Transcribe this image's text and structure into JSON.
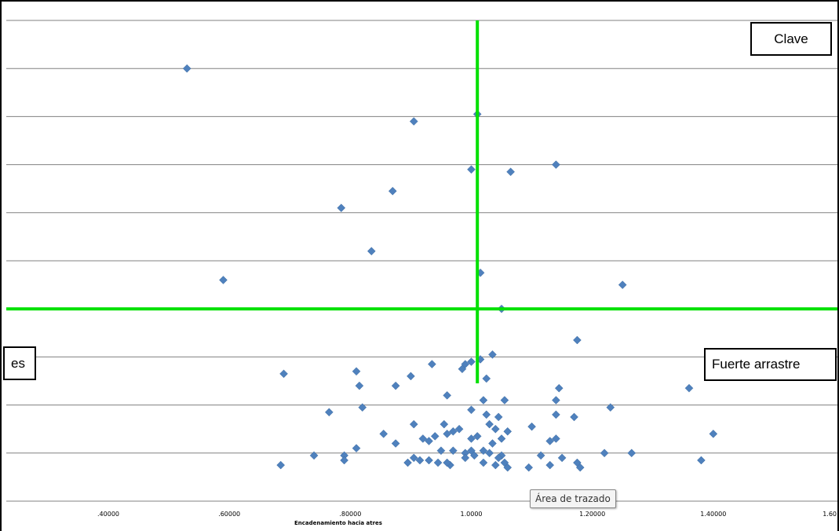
{
  "chart_data": {
    "type": "scatter",
    "title": "",
    "xlabel": "Encadenamiento hacia atres",
    "ylabel": "",
    "xlim": [
      0.255,
      1.6
    ],
    "ylim": [
      0,
      10
    ],
    "x_tick_labels": [
      ".40000",
      ".60000",
      ".80000",
      "1.0000",
      "1.20000",
      "1.40000",
      "1.60"
    ],
    "x_tick_values": [
      0.4,
      0.6,
      0.8,
      1.0,
      1.2,
      1.4,
      1.6
    ],
    "y_gridlines": [
      1,
      2,
      3,
      4,
      5,
      6,
      7,
      8,
      9,
      10
    ],
    "grid": true,
    "legend": "none",
    "reference_lines": {
      "vertical_x": 1.01,
      "horizontal_y": 4.0,
      "color": "#00e000"
    },
    "marker_color": "#4f81bd",
    "series": [
      {
        "points": [
          [
            0.53,
            9.0
          ],
          [
            0.59,
            4.6
          ],
          [
            0.905,
            7.9
          ],
          [
            1.01,
            8.05
          ],
          [
            1.0,
            6.9
          ],
          [
            1.065,
            6.85
          ],
          [
            1.14,
            7.0
          ],
          [
            0.87,
            6.45
          ],
          [
            0.785,
            6.1
          ],
          [
            0.835,
            5.2
          ],
          [
            1.015,
            4.75
          ],
          [
            1.25,
            4.5
          ],
          [
            1.05,
            4.0
          ],
          [
            1.175,
            3.35
          ],
          [
            0.69,
            2.65
          ],
          [
            0.81,
            2.7
          ],
          [
            0.815,
            2.4
          ],
          [
            0.875,
            2.4
          ],
          [
            0.9,
            2.6
          ],
          [
            0.935,
            2.85
          ],
          [
            0.985,
            2.75
          ],
          [
            0.99,
            2.85
          ],
          [
            1.0,
            2.9
          ],
          [
            1.015,
            2.95
          ],
          [
            1.035,
            3.05
          ],
          [
            1.025,
            2.55
          ],
          [
            1.145,
            2.35
          ],
          [
            1.36,
            2.35
          ],
          [
            0.765,
            1.85
          ],
          [
            0.82,
            1.95
          ],
          [
            0.96,
            2.2
          ],
          [
            1.02,
            2.1
          ],
          [
            1.055,
            2.1
          ],
          [
            1.14,
            2.1
          ],
          [
            1.23,
            1.95
          ],
          [
            1.0,
            1.9
          ],
          [
            1.025,
            1.8
          ],
          [
            1.045,
            1.75
          ],
          [
            1.14,
            1.8
          ],
          [
            1.17,
            1.75
          ],
          [
            0.905,
            1.6
          ],
          [
            0.955,
            1.6
          ],
          [
            1.03,
            1.6
          ],
          [
            1.04,
            1.5
          ],
          [
            1.06,
            1.45
          ],
          [
            1.1,
            1.55
          ],
          [
            0.855,
            1.4
          ],
          [
            0.875,
            1.2
          ],
          [
            0.92,
            1.3
          ],
          [
            0.93,
            1.25
          ],
          [
            0.94,
            1.35
          ],
          [
            0.96,
            1.4
          ],
          [
            0.97,
            1.45
          ],
          [
            0.98,
            1.5
          ],
          [
            1.0,
            1.3
          ],
          [
            1.01,
            1.35
          ],
          [
            1.035,
            1.2
          ],
          [
            1.05,
            1.3
          ],
          [
            1.13,
            1.25
          ],
          [
            1.14,
            1.3
          ],
          [
            1.4,
            1.4
          ],
          [
            0.74,
            0.95
          ],
          [
            0.79,
            0.95
          ],
          [
            0.81,
            1.1
          ],
          [
            0.95,
            1.05
          ],
          [
            0.97,
            1.05
          ],
          [
            0.99,
            1.0
          ],
          [
            1.0,
            1.05
          ],
          [
            1.02,
            1.05
          ],
          [
            1.03,
            1.0
          ],
          [
            1.05,
            0.95
          ],
          [
            1.115,
            0.95
          ],
          [
            1.15,
            0.9
          ],
          [
            1.22,
            1.0
          ],
          [
            1.265,
            1.0
          ],
          [
            0.685,
            0.75
          ],
          [
            0.79,
            0.85
          ],
          [
            0.895,
            0.8
          ],
          [
            0.915,
            0.85
          ],
          [
            0.93,
            0.85
          ],
          [
            0.945,
            0.8
          ],
          [
            0.965,
            0.75
          ],
          [
            0.99,
            0.9
          ],
          [
            1.005,
            0.95
          ],
          [
            1.02,
            0.8
          ],
          [
            1.04,
            0.75
          ],
          [
            1.055,
            0.8
          ],
          [
            1.06,
            0.7
          ],
          [
            1.095,
            0.7
          ],
          [
            1.13,
            0.75
          ],
          [
            1.18,
            0.7
          ],
          [
            1.175,
            0.8
          ],
          [
            1.38,
            0.85
          ],
          [
            0.905,
            0.9
          ],
          [
            0.96,
            0.8
          ],
          [
            1.045,
            0.9
          ]
        ]
      }
    ]
  },
  "labels": {
    "top_right": "Clave",
    "mid_right": "Fuerte arrastre",
    "mid_left_visible": "es"
  },
  "tooltip": "Área de trazado"
}
